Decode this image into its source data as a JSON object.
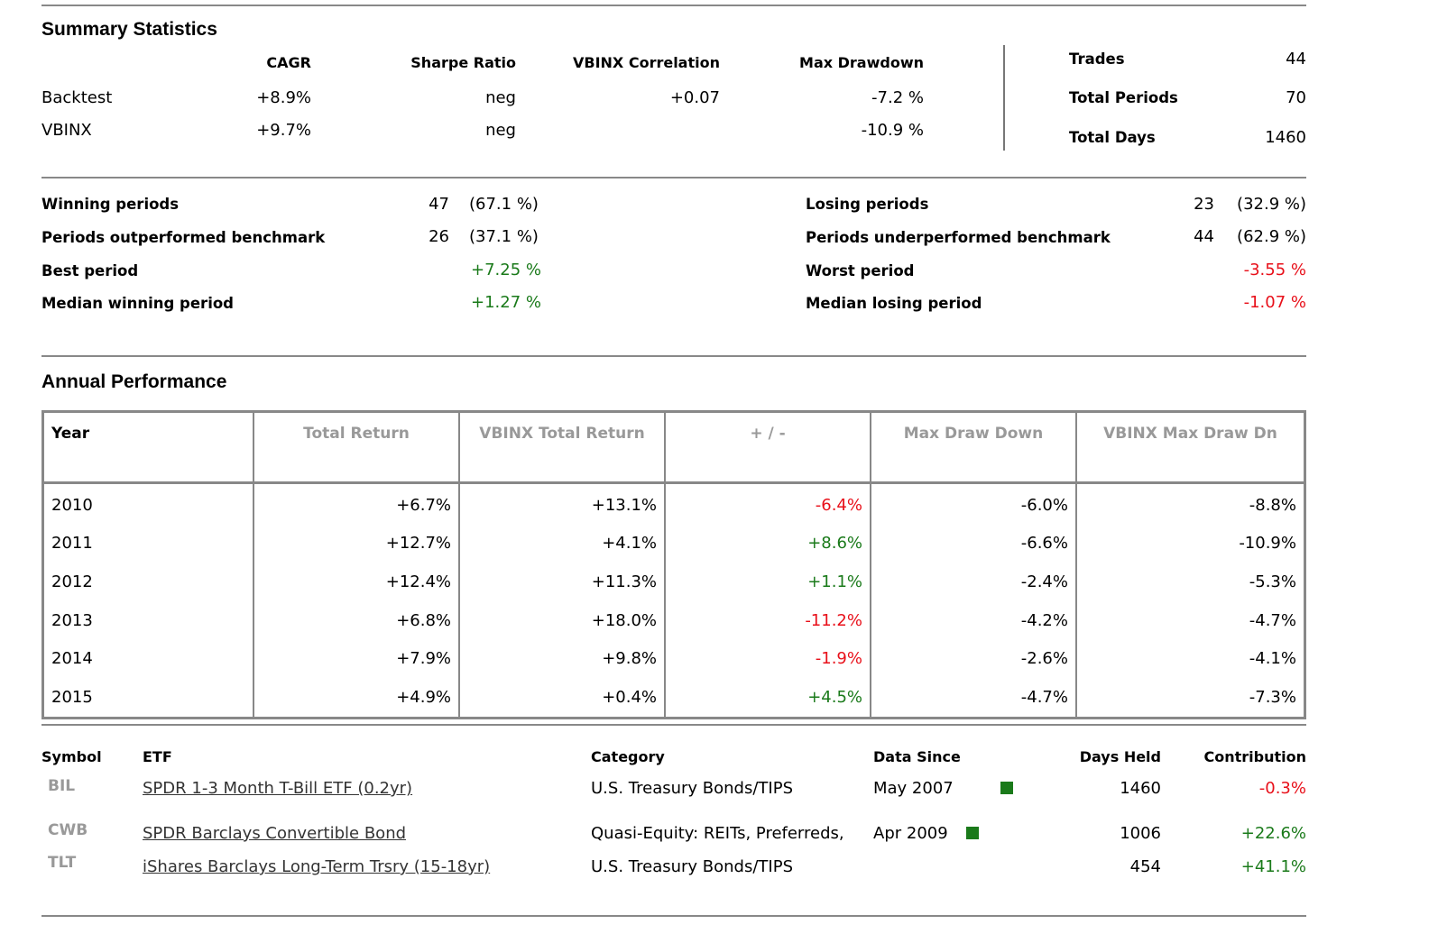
{
  "summary": {
    "title": "Summary Statistics",
    "headers": {
      "cagr": "CAGR",
      "sharpe": "Sharpe Ratio",
      "corr": "VBINX Correlation",
      "maxdd": "Max Drawdown"
    },
    "rows": [
      {
        "label": "Backtest",
        "cagr": "+8.9%",
        "sharpe": "neg",
        "corr": "+0.07",
        "maxdd": "-7.2 %"
      },
      {
        "label": "VBINX",
        "cagr": "+9.7%",
        "sharpe": "neg",
        "corr": "",
        "maxdd": "-10.9 %"
      }
    ],
    "side": [
      {
        "label": "Trades",
        "value": "44"
      },
      {
        "label": "Total Periods",
        "value": "70"
      },
      {
        "label": "Total Days",
        "value": "1460"
      }
    ]
  },
  "periods": {
    "left": [
      {
        "label": "Winning periods",
        "count": "47",
        "pct": "(67.1 %)"
      },
      {
        "label": "Periods outperformed benchmark",
        "count": "26",
        "pct": "(37.1 %)"
      },
      {
        "label": "Best period",
        "value": "+7.25 %"
      },
      {
        "label": "Median winning period",
        "value": "+1.27 %"
      }
    ],
    "right": [
      {
        "label": "Losing periods",
        "count": "23",
        "pct": "(32.9 %)"
      },
      {
        "label": "Periods underperformed benchmark",
        "count": "44",
        "pct": "(62.9 %)"
      },
      {
        "label": "Worst period",
        "value": "-3.55 %"
      },
      {
        "label": "Median losing period",
        "value": "-1.07 %"
      }
    ]
  },
  "annual": {
    "title": "Annual Performance",
    "headers": [
      "Year",
      "Total Return",
      "VBINX Total Return",
      "+ / -",
      "Max Draw Down",
      "VBINX Max Draw Dn"
    ],
    "rows": [
      [
        "2010",
        "+6.7%",
        "+13.1%",
        "-6.4%",
        "-6.0%",
        "-8.8%"
      ],
      [
        "2011",
        "+12.7%",
        "+4.1%",
        "+8.6%",
        "-6.6%",
        "-10.9%"
      ],
      [
        "2012",
        "+12.4%",
        "+11.3%",
        "+1.1%",
        "-2.4%",
        "-5.3%"
      ],
      [
        "2013",
        "+6.8%",
        "+18.0%",
        "-11.2%",
        "-4.2%",
        "-4.7%"
      ],
      [
        "2014",
        "+7.9%",
        "+9.8%",
        "-1.9%",
        "-2.6%",
        "-4.1%"
      ],
      [
        "2015",
        "+4.9%",
        "+0.4%",
        "+4.5%",
        "-4.7%",
        "-7.3%"
      ]
    ]
  },
  "holdings": {
    "headers": {
      "symbol": "Symbol",
      "etf": "ETF",
      "category": "Category",
      "since": "Data Since",
      "days": "Days Held",
      "contrib": "Contribution"
    },
    "rows": [
      {
        "symbol": "BIL",
        "etf": "SPDR 1-3 Month T-Bill ETF (0.2yr)",
        "category": "U.S. Treasury Bonds/TIPS",
        "since": "May 2007",
        "days": "1460",
        "contrib": "-0.3%"
      },
      {
        "symbol": "CWB",
        "etf": "SPDR Barclays Convertible Bond",
        "category": "Quasi-Equity: REITs, Preferreds,",
        "since": "Apr 2009",
        "days": "1006",
        "contrib": "+22.6%"
      },
      {
        "symbol": "TLT",
        "etf": "iShares Barclays Long-Term Trsry (15-18yr)",
        "category": "U.S. Treasury Bonds/TIPS",
        "since": "",
        "days": "454",
        "contrib": "+41.1%"
      }
    ]
  },
  "colors": {
    "positive": "#1a7a1a",
    "negative": "#e8101a",
    "muted": "#999999"
  }
}
